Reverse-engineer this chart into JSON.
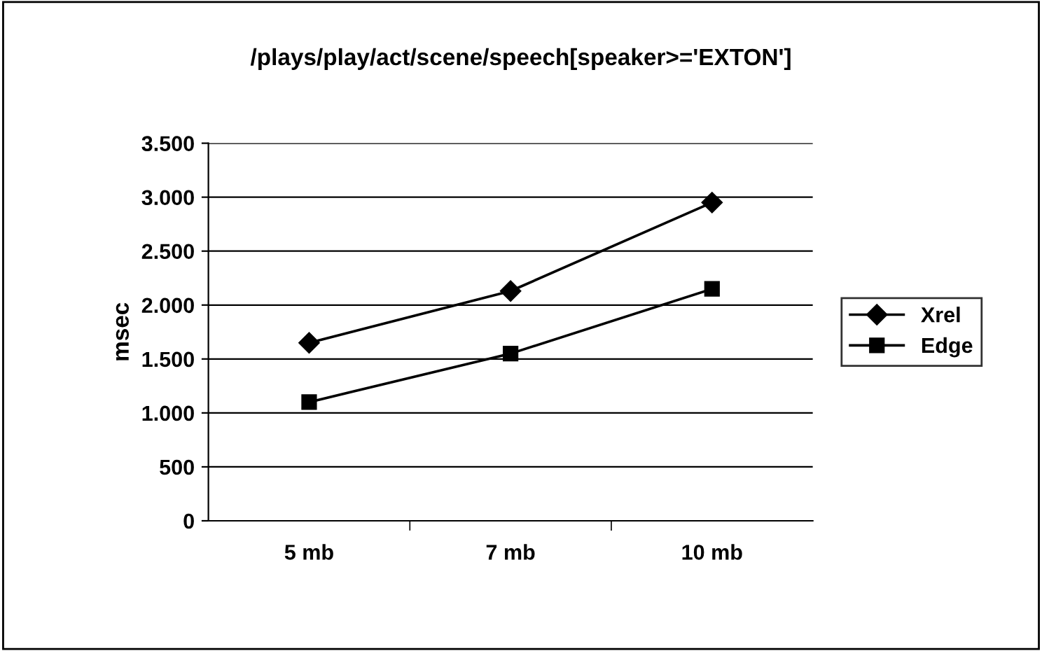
{
  "chart_data": {
    "type": "line",
    "title": "/plays/play/act/scene/speech[speaker>='EXTON']",
    "ylabel": "msec",
    "categories": [
      "5 mb",
      "7 mb",
      "10 mb"
    ],
    "series": [
      {
        "name": "Xrel",
        "color": "#000000",
        "marker": "diamond",
        "values": [
          1650,
          2130,
          2950
        ]
      },
      {
        "name": "Edge",
        "color": "#000000",
        "marker": "square",
        "values": [
          1100,
          1550,
          2150
        ]
      }
    ],
    "ylim": [
      0,
      3500
    ],
    "yticks": [
      0,
      500,
      {
        "value": 1000,
        "label": "1.000"
      },
      {
        "value": 1500,
        "label": "1.500"
      },
      {
        "value": 2000,
        "label": "2.000"
      },
      {
        "value": 2500,
        "label": "2.500"
      },
      {
        "value": 3000,
        "label": "3.000"
      },
      {
        "value": 3500,
        "label": "3.500"
      }
    ],
    "grid": "y",
    "legend": "right",
    "line_style": "solid"
  }
}
